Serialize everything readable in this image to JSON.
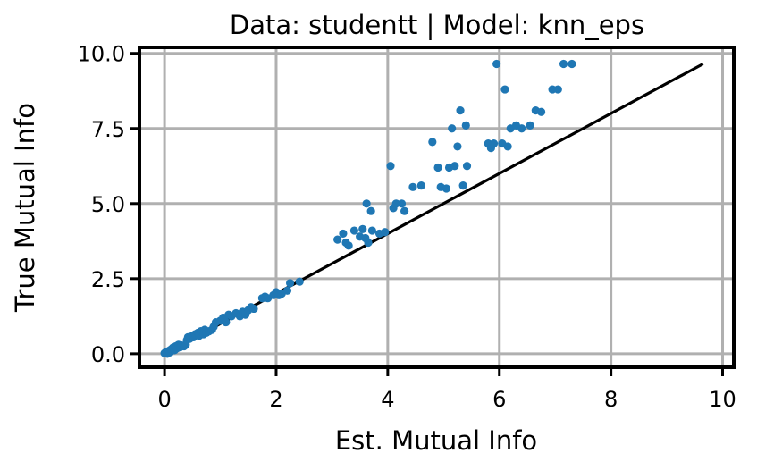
{
  "chart_data": {
    "type": "scatter",
    "title": "Data: studentt | Model: knn_eps",
    "xlabel": "Est. Mutual Info",
    "ylabel": "True Mutual Info",
    "xlim": [
      -0.45,
      10.2
    ],
    "ylim": [
      -0.45,
      10.2
    ],
    "xticks": [
      0,
      2,
      4,
      6,
      8,
      10
    ],
    "xtick_labels": [
      "0",
      "2",
      "4",
      "6",
      "8",
      "10"
    ],
    "yticks": [
      0.0,
      2.5,
      5.0,
      7.5,
      10.0
    ],
    "ytick_labels": [
      "0.0",
      "2.5",
      "5.0",
      "7.5",
      "10.0"
    ],
    "grid": true,
    "point_color": "#1f77b4",
    "reference_line": {
      "x": [
        0,
        9.65
      ],
      "y": [
        0,
        9.65
      ],
      "color": "#000000"
    },
    "points": [
      [
        0.0,
        0.02
      ],
      [
        0.02,
        0.05
      ],
      [
        0.05,
        0.0
      ],
      [
        0.08,
        0.1
      ],
      [
        0.1,
        0.05
      ],
      [
        0.12,
        0.15
      ],
      [
        0.15,
        0.2
      ],
      [
        0.18,
        0.12
      ],
      [
        0.2,
        0.25
      ],
      [
        0.22,
        0.18
      ],
      [
        0.25,
        0.3
      ],
      [
        0.28,
        0.22
      ],
      [
        0.3,
        0.28
      ],
      [
        0.35,
        0.25
      ],
      [
        0.38,
        0.3
      ],
      [
        0.4,
        0.45
      ],
      [
        0.42,
        0.55
      ],
      [
        0.45,
        0.5
      ],
      [
        0.5,
        0.6
      ],
      [
        0.52,
        0.55
      ],
      [
        0.55,
        0.65
      ],
      [
        0.6,
        0.7
      ],
      [
        0.62,
        0.6
      ],
      [
        0.65,
        0.75
      ],
      [
        0.7,
        0.65
      ],
      [
        0.72,
        0.8
      ],
      [
        0.75,
        0.7
      ],
      [
        0.8,
        0.75
      ],
      [
        0.85,
        0.8
      ],
      [
        0.88,
        0.9
      ],
      [
        0.92,
        1.05
      ],
      [
        1.0,
        1.1
      ],
      [
        1.05,
        1.2
      ],
      [
        1.1,
        1.05
      ],
      [
        1.15,
        1.3
      ],
      [
        1.2,
        1.25
      ],
      [
        1.28,
        1.35
      ],
      [
        1.35,
        1.25
      ],
      [
        1.4,
        1.4
      ],
      [
        1.45,
        1.3
      ],
      [
        1.5,
        1.45
      ],
      [
        1.55,
        1.55
      ],
      [
        1.6,
        1.5
      ],
      [
        1.75,
        1.85
      ],
      [
        1.8,
        1.9
      ],
      [
        1.85,
        1.85
      ],
      [
        1.95,
        1.95
      ],
      [
        2.0,
        2.05
      ],
      [
        2.05,
        1.95
      ],
      [
        2.1,
        2.0
      ],
      [
        2.2,
        2.1
      ],
      [
        2.25,
        2.35
      ],
      [
        2.42,
        2.4
      ],
      [
        3.1,
        3.8
      ],
      [
        3.2,
        4.0
      ],
      [
        3.25,
        3.7
      ],
      [
        3.3,
        3.6
      ],
      [
        3.4,
        4.1
      ],
      [
        3.5,
        3.9
      ],
      [
        3.55,
        4.15
      ],
      [
        3.6,
        3.85
      ],
      [
        3.62,
        5.0
      ],
      [
        3.65,
        3.7
      ],
      [
        3.7,
        4.75
      ],
      [
        3.72,
        4.1
      ],
      [
        3.85,
        4.0
      ],
      [
        3.95,
        4.05
      ],
      [
        4.05,
        6.25
      ],
      [
        4.1,
        4.85
      ],
      [
        4.15,
        5.0
      ],
      [
        4.25,
        5.0
      ],
      [
        4.3,
        4.75
      ],
      [
        4.45,
        5.55
      ],
      [
        4.6,
        5.6
      ],
      [
        4.8,
        7.05
      ],
      [
        4.9,
        6.2
      ],
      [
        4.95,
        5.55
      ],
      [
        5.05,
        5.5
      ],
      [
        5.1,
        6.2
      ],
      [
        5.15,
        7.5
      ],
      [
        5.2,
        6.25
      ],
      [
        5.25,
        6.9
      ],
      [
        5.3,
        8.1
      ],
      [
        5.35,
        5.6
      ],
      [
        5.4,
        7.6
      ],
      [
        5.42,
        6.25
      ],
      [
        5.8,
        7.0
      ],
      [
        5.85,
        6.85
      ],
      [
        5.9,
        7.0
      ],
      [
        5.95,
        9.65
      ],
      [
        6.05,
        7.0
      ],
      [
        6.1,
        8.8
      ],
      [
        6.15,
        6.9
      ],
      [
        6.2,
        7.5
      ],
      [
        6.3,
        7.6
      ],
      [
        6.4,
        7.5
      ],
      [
        6.55,
        7.6
      ],
      [
        6.65,
        8.1
      ],
      [
        6.75,
        8.05
      ],
      [
        6.95,
        8.8
      ],
      [
        7.05,
        8.8
      ],
      [
        7.15,
        9.65
      ],
      [
        7.3,
        9.65
      ]
    ]
  }
}
